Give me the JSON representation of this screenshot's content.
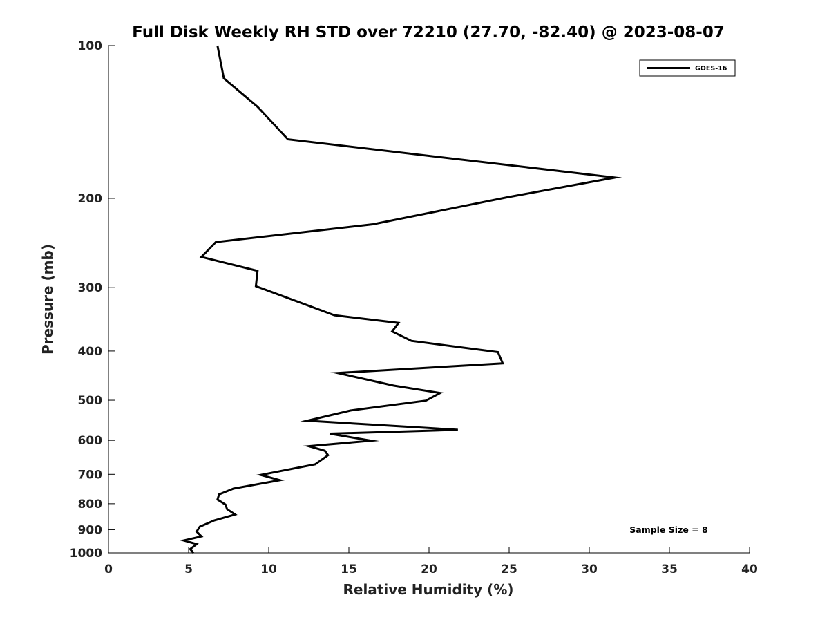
{
  "chart_data": {
    "type": "line",
    "title": "Full Disk Weekly RH STD over 72210 (27.70, -82.40) @ 2023-08-07",
    "xlabel": "Relative Humidity (%)",
    "ylabel": "Pressure (mb)",
    "xlim": [
      0,
      40
    ],
    "ylim": [
      100,
      1000
    ],
    "y_scale": "log",
    "y_reversed": true,
    "x_ticks": [
      0,
      5,
      10,
      15,
      20,
      25,
      30,
      35,
      40
    ],
    "y_ticks": [
      100,
      200,
      300,
      400,
      500,
      600,
      700,
      800,
      900,
      1000
    ],
    "grid": false,
    "legend_position": "top-right",
    "annotation": "Sample Size = 8",
    "series": [
      {
        "name": "GOES-16",
        "color": "#000000",
        "x": [
          6.8,
          7.2,
          9.3,
          11.2,
          31.6,
          24.9,
          16.5,
          6.7,
          5.8,
          9.3,
          9.2,
          14.1,
          18.1,
          17.7,
          18.9,
          24.3,
          24.6,
          14.3,
          17.8,
          20.7,
          19.8,
          15.1,
          12.4,
          21.8,
          13.8,
          16.4,
          12.5,
          13.5,
          13.7,
          12.9,
          9.5,
          10.7,
          7.8,
          6.9,
          6.8,
          7.3,
          7.4,
          7.9,
          6.6,
          5.7,
          5.5,
          5.8,
          4.7,
          5.5,
          5.1,
          5.3
        ],
        "y": [
          100,
          116,
          132,
          153,
          182,
          199,
          225,
          244,
          261,
          278,
          298,
          340,
          352,
          366,
          382,
          402,
          423,
          442,
          468,
          484,
          501,
          524,
          549,
          572,
          582,
          601,
          616,
          629,
          642,
          669,
          702,
          719,
          747,
          767,
          785,
          803,
          820,
          840,
          863,
          888,
          908,
          928,
          945,
          961,
          983,
          1000
        ]
      }
    ]
  }
}
